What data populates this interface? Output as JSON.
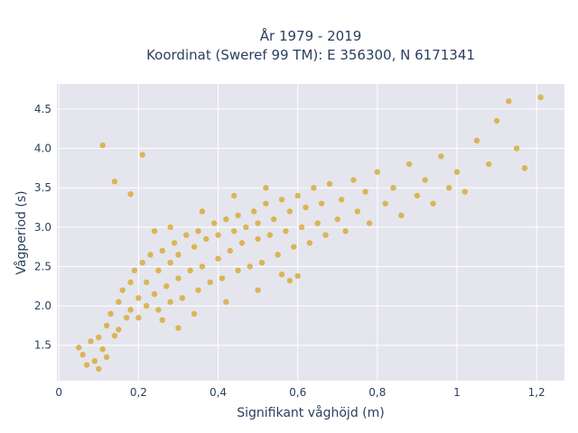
{
  "chart_data": {
    "type": "scatter",
    "title_line1": "År 1979 - 2019",
    "title_line2": "Koordinat (Sweref 99 TM): E 356300, N 6171341",
    "xlabel": "Signifikant våghöjd (m)",
    "ylabel": "Vågperiod (s)",
    "xlim": [
      -0.005,
      1.27
    ],
    "ylim": [
      1.05,
      4.82
    ],
    "x_ticks": [
      0,
      0.2,
      0.4,
      0.6,
      0.8,
      1,
      1.2
    ],
    "x_tick_labels": [
      "0",
      "0,2",
      "0,4",
      "0,6",
      "0,8",
      "1",
      "1,2"
    ],
    "y_ticks": [
      1.5,
      2.0,
      2.5,
      3.0,
      3.5,
      4.0,
      4.5
    ],
    "y_tick_labels": [
      "1.5",
      "2.0",
      "2.5",
      "3.0",
      "3.5",
      "4.0",
      "4.5"
    ],
    "grid": true,
    "marker_color": "#D4A422",
    "plot_bgcolor": "#E5E5EE",
    "series": [
      {
        "values_xy": [
          [
            0.05,
            1.47
          ],
          [
            0.06,
            1.38
          ],
          [
            0.07,
            1.25
          ],
          [
            0.08,
            1.55
          ],
          [
            0.09,
            1.3
          ],
          [
            0.1,
            1.2
          ],
          [
            0.1,
            1.6
          ],
          [
            0.11,
            1.45
          ],
          [
            0.12,
            1.75
          ],
          [
            0.12,
            1.35
          ],
          [
            0.13,
            1.9
          ],
          [
            0.14,
            1.62
          ],
          [
            0.15,
            2.05
          ],
          [
            0.15,
            1.7
          ],
          [
            0.16,
            2.2
          ],
          [
            0.17,
            1.85
          ],
          [
            0.18,
            2.3
          ],
          [
            0.18,
            1.95
          ],
          [
            0.19,
            2.45
          ],
          [
            0.2,
            2.1
          ],
          [
            0.2,
            1.85
          ],
          [
            0.21,
            2.55
          ],
          [
            0.22,
            2.0
          ],
          [
            0.22,
            2.3
          ],
          [
            0.23,
            2.65
          ],
          [
            0.24,
            2.15
          ],
          [
            0.25,
            2.45
          ],
          [
            0.25,
            1.95
          ],
          [
            0.26,
            2.7
          ],
          [
            0.27,
            2.25
          ],
          [
            0.28,
            2.55
          ],
          [
            0.28,
            2.05
          ],
          [
            0.29,
            2.8
          ],
          [
            0.3,
            2.35
          ],
          [
            0.3,
            2.65
          ],
          [
            0.31,
            2.1
          ],
          [
            0.32,
            2.9
          ],
          [
            0.33,
            2.45
          ],
          [
            0.34,
            2.75
          ],
          [
            0.35,
            2.2
          ],
          [
            0.35,
            2.95
          ],
          [
            0.36,
            2.5
          ],
          [
            0.37,
            2.85
          ],
          [
            0.38,
            2.3
          ],
          [
            0.39,
            3.05
          ],
          [
            0.4,
            2.6
          ],
          [
            0.4,
            2.9
          ],
          [
            0.41,
            2.35
          ],
          [
            0.42,
            3.1
          ],
          [
            0.43,
            2.7
          ],
          [
            0.44,
            2.95
          ],
          [
            0.45,
            2.45
          ],
          [
            0.45,
            3.15
          ],
          [
            0.46,
            2.8
          ],
          [
            0.47,
            3.0
          ],
          [
            0.48,
            2.5
          ],
          [
            0.49,
            3.2
          ],
          [
            0.5,
            2.85
          ],
          [
            0.5,
            3.05
          ],
          [
            0.51,
            2.55
          ],
          [
            0.52,
            3.3
          ],
          [
            0.53,
            2.9
          ],
          [
            0.54,
            3.1
          ],
          [
            0.55,
            2.65
          ],
          [
            0.56,
            3.35
          ],
          [
            0.57,
            2.95
          ],
          [
            0.58,
            3.2
          ],
          [
            0.59,
            2.75
          ],
          [
            0.6,
            3.4
          ],
          [
            0.61,
            3.0
          ],
          [
            0.62,
            3.25
          ],
          [
            0.63,
            2.8
          ],
          [
            0.64,
            3.5
          ],
          [
            0.65,
            3.05
          ],
          [
            0.66,
            3.3
          ],
          [
            0.67,
            2.9
          ],
          [
            0.68,
            3.55
          ],
          [
            0.7,
            3.1
          ],
          [
            0.71,
            3.35
          ],
          [
            0.72,
            2.95
          ],
          [
            0.74,
            3.6
          ],
          [
            0.75,
            3.2
          ],
          [
            0.77,
            3.45
          ],
          [
            0.78,
            3.05
          ],
          [
            0.8,
            3.7
          ],
          [
            0.82,
            3.3
          ],
          [
            0.84,
            3.5
          ],
          [
            0.86,
            3.15
          ],
          [
            0.88,
            3.8
          ],
          [
            0.9,
            3.4
          ],
          [
            0.92,
            3.6
          ],
          [
            0.94,
            3.3
          ],
          [
            0.96,
            3.9
          ],
          [
            0.98,
            3.5
          ],
          [
            1.0,
            3.7
          ],
          [
            1.02,
            3.45
          ],
          [
            1.05,
            4.1
          ],
          [
            1.08,
            3.8
          ],
          [
            1.1,
            4.35
          ],
          [
            1.13,
            4.6
          ],
          [
            1.15,
            4.0
          ],
          [
            1.17,
            3.75
          ],
          [
            1.21,
            4.65
          ],
          [
            0.11,
            4.04
          ],
          [
            0.14,
            3.58
          ],
          [
            0.18,
            3.42
          ],
          [
            0.21,
            3.92
          ],
          [
            0.6,
            2.38
          ],
          [
            0.56,
            2.4
          ],
          [
            0.3,
            1.72
          ],
          [
            0.26,
            1.82
          ],
          [
            0.34,
            1.9
          ],
          [
            0.42,
            2.05
          ],
          [
            0.5,
            2.2
          ],
          [
            0.58,
            2.32
          ],
          [
            0.24,
            2.95
          ],
          [
            0.28,
            3.0
          ],
          [
            0.36,
            3.2
          ],
          [
            0.44,
            3.4
          ],
          [
            0.52,
            3.5
          ]
        ]
      }
    ]
  }
}
